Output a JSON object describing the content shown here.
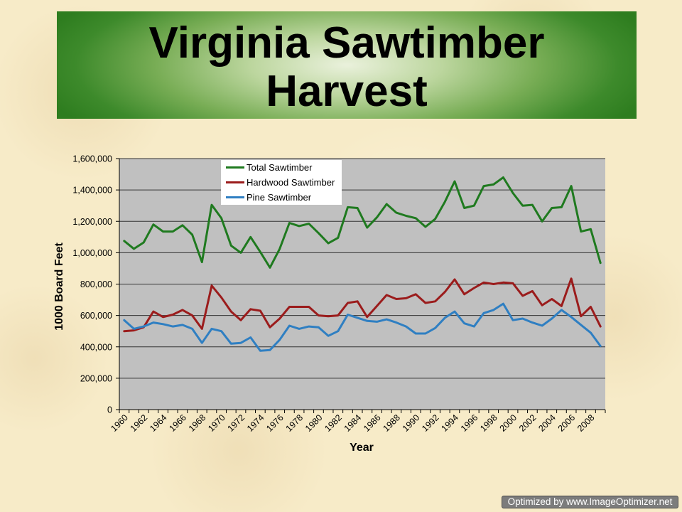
{
  "slide": {
    "title_line1": "Virginia Sawtimber",
    "title_line2": "Harvest"
  },
  "chart_data": {
    "type": "line",
    "xlabel": "Year",
    "ylabel": "1000 Board Feet",
    "ylim": [
      0,
      1600000
    ],
    "y_ticks": [
      0,
      200000,
      400000,
      600000,
      800000,
      1000000,
      1200000,
      1400000,
      1600000
    ],
    "x": [
      1960,
      1961,
      1962,
      1963,
      1964,
      1965,
      1966,
      1967,
      1968,
      1969,
      1970,
      1971,
      1972,
      1973,
      1974,
      1975,
      1976,
      1977,
      1978,
      1979,
      1980,
      1981,
      1982,
      1983,
      1984,
      1985,
      1986,
      1987,
      1988,
      1989,
      1990,
      1991,
      1992,
      1993,
      1994,
      1995,
      1996,
      1997,
      1998,
      1999,
      2000,
      2001,
      2002,
      2003,
      2004,
      2005,
      2006,
      2007,
      2008,
      2009
    ],
    "x_ticks": [
      1960,
      1962,
      1964,
      1966,
      1968,
      1970,
      1972,
      1974,
      1976,
      1978,
      1980,
      1982,
      1984,
      1986,
      1988,
      1990,
      1992,
      1994,
      1996,
      1998,
      2000,
      2002,
      2004,
      2006,
      2008
    ],
    "grid": true,
    "legend": "top-left",
    "plot_background": "#c0c0c0",
    "series": [
      {
        "name": "Total Sawtimber",
        "color": "#1f7a1f",
        "values": [
          1075000,
          1025000,
          1065000,
          1180000,
          1135000,
          1135000,
          1175000,
          1115000,
          940000,
          1305000,
          1220000,
          1045000,
          1000000,
          1100000,
          1005000,
          905000,
          1025000,
          1190000,
          1170000,
          1185000,
          1125000,
          1060000,
          1095000,
          1290000,
          1285000,
          1160000,
          1225000,
          1310000,
          1255000,
          1235000,
          1220000,
          1165000,
          1215000,
          1325000,
          1455000,
          1285000,
          1300000,
          1425000,
          1435000,
          1480000,
          1380000,
          1300000,
          1305000,
          1200000,
          1285000,
          1290000,
          1425000,
          1135000,
          1150000,
          935000
        ]
      },
      {
        "name": "Hardwood Sawtimber",
        "color": "#9b1c1c",
        "values": [
          500000,
          505000,
          525000,
          625000,
          590000,
          605000,
          635000,
          600000,
          515000,
          790000,
          715000,
          625000,
          570000,
          640000,
          630000,
          525000,
          580000,
          655000,
          655000,
          655000,
          600000,
          595000,
          600000,
          680000,
          690000,
          590000,
          660000,
          730000,
          705000,
          710000,
          735000,
          680000,
          690000,
          750000,
          830000,
          735000,
          775000,
          810000,
          800000,
          810000,
          805000,
          725000,
          755000,
          665000,
          705000,
          660000,
          835000,
          595000,
          655000,
          530000
        ]
      },
      {
        "name": "Pine Sawtimber",
        "color": "#2f7fc2",
        "values": [
          570000,
          515000,
          530000,
          555000,
          545000,
          530000,
          540000,
          515000,
          425000,
          515000,
          500000,
          420000,
          425000,
          460000,
          375000,
          380000,
          445000,
          535000,
          515000,
          530000,
          525000,
          470000,
          500000,
          605000,
          585000,
          565000,
          560000,
          575000,
          555000,
          530000,
          485000,
          485000,
          520000,
          585000,
          625000,
          550000,
          530000,
          615000,
          635000,
          675000,
          570000,
          580000,
          555000,
          535000,
          580000,
          635000,
          590000,
          540000,
          490000,
          405000
        ]
      }
    ]
  },
  "watermark": "Optimized by www.ImageOptimizer.net"
}
